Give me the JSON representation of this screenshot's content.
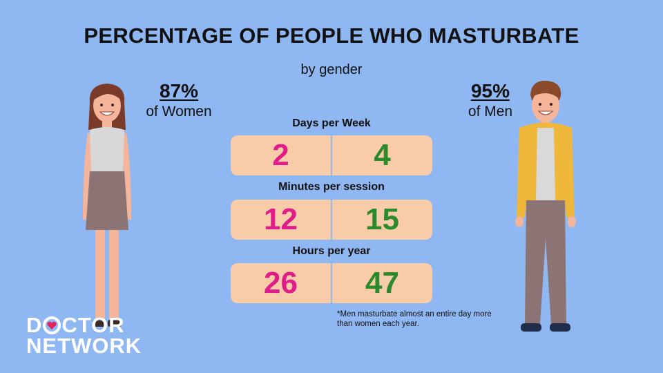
{
  "title": "PERCENTAGE OF PEOPLE WHO MASTURBATE",
  "subtitle": "by gender",
  "women": {
    "percent": "87%",
    "label": "of Women"
  },
  "men": {
    "percent": "95%",
    "label": "of Men"
  },
  "metrics": [
    {
      "label": "Days per Week",
      "women": "2",
      "men": "4"
    },
    {
      "label": "Minutes per session",
      "women": "12",
      "men": "15"
    },
    {
      "label": "Hours per year",
      "women": "26",
      "men": "47"
    }
  ],
  "footnote": "*Men masturbate almost an entire day more than women each year.",
  "logo": {
    "line1_pre": "D",
    "line1_post": "CTOR",
    "line2": "NETWORK"
  },
  "colors": {
    "background": "#8fb7f2",
    "cell": "#f8cca8",
    "women": "#e11d8a",
    "men": "#2b8a2b",
    "heart": "#e0245e"
  },
  "icons": [
    "woman-figure",
    "man-figure",
    "heart-icon"
  ]
}
